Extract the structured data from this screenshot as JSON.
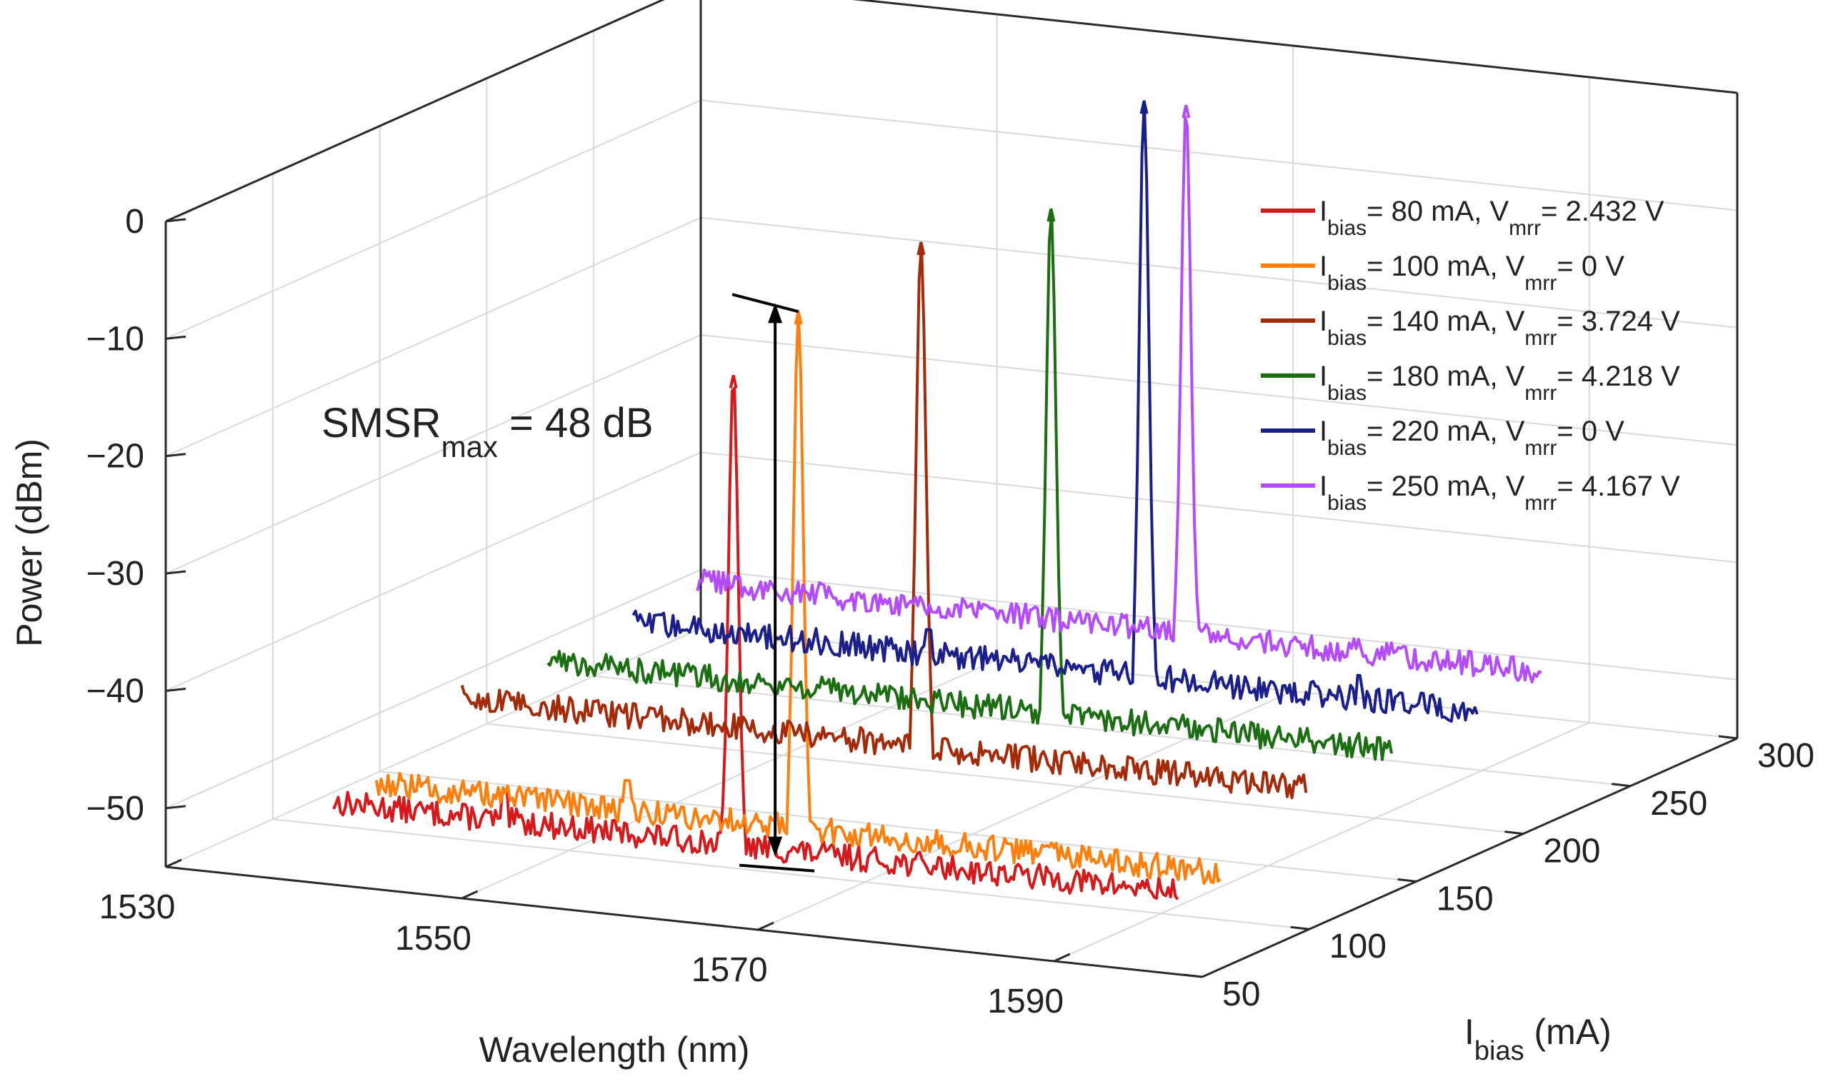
{
  "chart_data": {
    "type": "line",
    "view": "3d-waterfall",
    "title": "",
    "xlabel": "Wavelength (nm)",
    "ylabel": {
      "main": "I",
      "sub": "bias",
      "tail": " (mA)"
    },
    "zlabel": "Power (dBm)",
    "xlim": [
      1530,
      1600
    ],
    "ylim": [
      50,
      300
    ],
    "zlim": [
      -55,
      0
    ],
    "xticks": [
      1530,
      1550,
      1570,
      1590
    ],
    "yticks": [
      50,
      100,
      150,
      200,
      250,
      300
    ],
    "zticks": [
      0,
      -10,
      -20,
      -30,
      -40,
      -50
    ],
    "xtick_labels": [
      "1530",
      "1550",
      "1570",
      "1590"
    ],
    "ytick_labels": [
      "50",
      "100",
      "150",
      "200",
      "250",
      "300"
    ],
    "ztick_labels": [
      "0",
      "−10",
      "−20",
      "−30",
      "−40",
      "−50"
    ],
    "grid": true,
    "legend_position": "top-right",
    "series": [
      {
        "name": "Ibias = 80 mA, Vmrr = 2.432 V",
        "label": {
          "i": "I",
          "i_sub": "bias",
          "mid": "= 80 mA, V",
          "v_sub": "mrr",
          "tail": "= 2.432 V"
        },
        "color": "#d7191c",
        "ibias": 80,
        "wl_start": 1537,
        "wl_end": 1594,
        "noise_floor_dBm": -51,
        "peak_wavelength_nm": 1564,
        "peak_power_dBm": -11,
        "side_peaks": [
          {
            "wavelength_nm": 1548.5,
            "power_dBm": -48.5
          }
        ]
      },
      {
        "name": "Ibias = 100 mA, Vmrr = 0 V",
        "label": {
          "i": "I",
          "i_sub": "bias",
          "mid": "= 100 mA, V",
          "v_sub": "mrr",
          "tail": "= 0 V"
        },
        "color": "#ff7f0e",
        "ibias": 100,
        "wl_start": 1537,
        "wl_end": 1594,
        "noise_floor_dBm": -51,
        "peak_wavelength_nm": 1565.5,
        "peak_power_dBm": -7,
        "side_peaks": [
          {
            "wavelength_nm": 1554,
            "power_dBm": -48.5
          }
        ]
      },
      {
        "name": "Ibias = 140 mA, Vmrr = 3.724 V",
        "label": {
          "i": "I",
          "i_sub": "bias",
          "mid": "= 140 mA, V",
          "v_sub": "mrr",
          "tail": "= 3.724 V"
        },
        "color": "#a52a0a",
        "ibias": 140,
        "wl_start": 1537,
        "wl_end": 1594,
        "noise_floor_dBm": -47,
        "peak_wavelength_nm": 1568,
        "peak_power_dBm": -4,
        "side_peaks": [
          {
            "wavelength_nm": 1571.5,
            "power_dBm": -48
          }
        ]
      },
      {
        "name": "Ibias = 180 mA, Vmrr = 4.218 V",
        "label": {
          "i": "I",
          "i_sub": "bias",
          "mid": "= 180 mA, V",
          "v_sub": "mrr",
          "tail": "= 4.218 V"
        },
        "color": "#1b6e12",
        "ibias": 180,
        "wl_start": 1537,
        "wl_end": 1594,
        "noise_floor_dBm": -47,
        "peak_wavelength_nm": 1571,
        "peak_power_dBm": -4,
        "side_peaks": [
          {
            "wavelength_nm": 1569,
            "power_dBm": -47
          }
        ]
      },
      {
        "name": "Ibias = 220 mA, Vmrr = 0 V",
        "label": {
          "i": "I",
          "i_sub": "bias",
          "mid": "= 220 mA, V",
          "v_sub": "mrr",
          "tail": "= 0 V"
        },
        "color": "#1a1f8c",
        "ibias": 220,
        "wl_start": 1537,
        "wl_end": 1594,
        "noise_floor_dBm": -47,
        "peak_wavelength_nm": 1571.5,
        "peak_power_dBm": 2,
        "side_peaks": [
          {
            "wavelength_nm": 1557,
            "power_dBm": -45
          },
          {
            "wavelength_nm": 1586,
            "power_dBm": -45
          }
        ]
      },
      {
        "name": "Ibias = 250 mA, Vmrr = 4.167 V",
        "label": {
          "i": "I",
          "i_sub": "bias",
          "mid": "= 250 mA, V",
          "v_sub": "mrr",
          "tail": "= 4.167 V"
        },
        "color": "#b44bff",
        "ibias": 250,
        "wl_start": 1537,
        "wl_end": 1594,
        "noise_floor_dBm": -46,
        "peak_wavelength_nm": 1570,
        "peak_power_dBm": -1,
        "side_peaks": []
      }
    ],
    "annotations": [
      {
        "text_main": "SMSR",
        "text_sub": "max",
        "text_tail": " = 48 dB",
        "reference_ibias": 100,
        "from_dBm": -7,
        "to_dBm": -55,
        "wavelength_nm": 1562
      }
    ]
  }
}
